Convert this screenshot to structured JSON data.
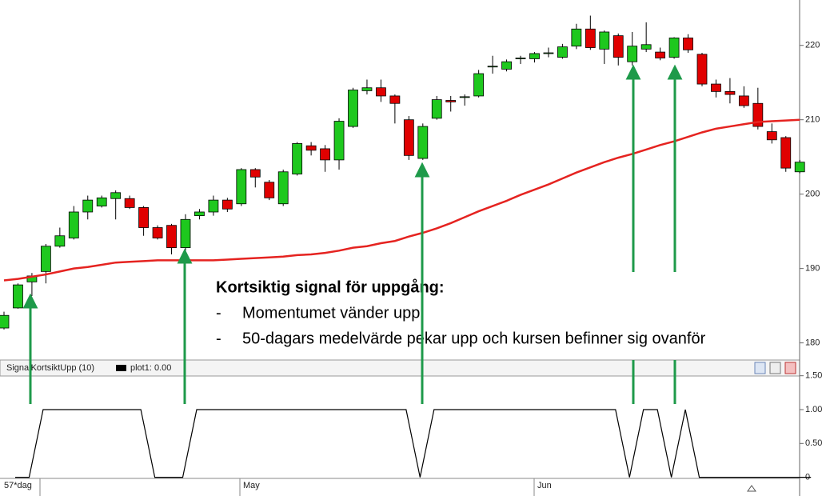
{
  "chart_data": [
    {
      "type": "candlestick",
      "open": [
        182.0,
        184.7,
        188.2,
        189.6,
        193.0,
        194.1,
        197.6,
        198.4,
        199.4,
        199.4,
        198.2,
        195.5,
        195.8,
        192.8,
        197.1,
        197.6,
        199.2,
        198.7,
        203.3,
        201.6,
        198.7,
        202.7,
        206.5,
        206.1,
        204.6,
        209.1,
        213.9,
        214.3,
        213.2,
        210.0,
        204.8,
        210.2,
        212.6,
        213.0,
        213.2,
        217.1,
        216.8,
        218.2,
        218.2,
        218.9,
        218.4,
        219.9,
        222.2,
        219.5,
        221.3,
        217.8,
        219.5,
        219.1,
        218.4,
        221.0,
        218.8,
        214.8,
        213.8,
        213.2,
        212.2,
        208.4,
        207.6,
        203.0
      ],
      "high": [
        184.2,
        188.0,
        189.4,
        193.3,
        195.5,
        198.4,
        199.8,
        199.8,
        200.5,
        199.8,
        198.4,
        195.8,
        196.0,
        197.3,
        198.0,
        199.8,
        199.5,
        203.5,
        203.5,
        201.9,
        203.3,
        207.0,
        207.0,
        206.6,
        210.2,
        214.3,
        215.4,
        215.4,
        213.4,
        210.5,
        209.5,
        213.2,
        213.2,
        213.4,
        216.7,
        218.6,
        218.1,
        218.6,
        219.1,
        219.7,
        220.2,
        222.9,
        224.0,
        222.0,
        221.6,
        221.8,
        223.1,
        219.7,
        221.1,
        221.5,
        219.0,
        215.4,
        215.6,
        214.5,
        214.3,
        209.5,
        207.8,
        204.6
      ],
      "low": [
        181.8,
        184.6,
        186.3,
        188.0,
        192.8,
        193.9,
        196.6,
        198.2,
        196.6,
        198.0,
        194.4,
        193.9,
        191.9,
        191.9,
        196.6,
        197.1,
        197.6,
        198.4,
        200.9,
        199.2,
        198.4,
        202.5,
        205.2,
        203.0,
        203.3,
        208.9,
        213.4,
        212.4,
        209.5,
        204.6,
        204.6,
        210.0,
        211.1,
        211.9,
        213.0,
        216.2,
        216.5,
        217.5,
        217.7,
        218.4,
        218.2,
        219.5,
        219.4,
        217.5,
        217.3,
        217.3,
        219.1,
        218.0,
        218.2,
        219.0,
        214.5,
        213.0,
        212.2,
        211.6,
        208.7,
        206.8,
        203.0,
        202.8
      ],
      "close": [
        183.7,
        187.8,
        189.0,
        193.0,
        194.4,
        197.6,
        199.2,
        199.5,
        200.2,
        198.2,
        195.5,
        194.1,
        192.8,
        196.6,
        197.6,
        199.2,
        198.0,
        203.3,
        202.3,
        199.5,
        203.0,
        206.8,
        205.9,
        204.6,
        209.8,
        214.0,
        214.3,
        213.2,
        212.2,
        205.2,
        209.1,
        212.7,
        212.4,
        213.1,
        216.2,
        217.2,
        217.8,
        218.3,
        218.9,
        219.0,
        219.8,
        222.2,
        219.7,
        221.8,
        218.4,
        219.9,
        220.1,
        218.3,
        221.0,
        219.4,
        214.8,
        213.8,
        213.4,
        211.9,
        209.1,
        207.3,
        203.5,
        204.3
      ],
      "up_color": "#1ec81e",
      "down_color": "#e00000",
      "ma": {
        "color": "#e52320",
        "values": [
          188.4,
          188.6,
          188.9,
          189.2,
          189.6,
          190.0,
          190.2,
          190.5,
          190.8,
          190.9,
          191.0,
          191.1,
          191.1,
          191.1,
          191.1,
          191.1,
          191.2,
          191.3,
          191.4,
          191.5,
          191.6,
          191.8,
          191.9,
          192.1,
          192.4,
          192.8,
          193.0,
          193.4,
          193.7,
          194.3,
          194.8,
          195.4,
          196.1,
          196.9,
          197.7,
          198.4,
          199.1,
          199.9,
          200.6,
          201.3,
          202.1,
          202.9,
          203.6,
          204.3,
          204.9,
          205.4,
          206.0,
          206.6,
          207.1,
          207.7,
          208.3,
          208.8,
          209.1,
          209.4,
          209.7,
          209.8,
          209.9,
          210.0
        ]
      },
      "ylim": [
        177.7,
        226.1
      ],
      "yticks": [
        180,
        190,
        200,
        210,
        220
      ]
    },
    {
      "type": "line",
      "title": "SignalKortsiktUpp (10)",
      "legend": "plot1: 0.00",
      "series": [
        {
          "color": "#000000",
          "values": [
            0,
            0,
            1,
            1,
            1,
            1,
            1,
            1,
            1,
            1,
            0,
            0,
            0,
            1,
            1,
            1,
            1,
            1,
            1,
            1,
            1,
            1,
            1,
            1,
            1,
            1,
            1,
            1,
            1,
            0,
            1,
            1,
            1,
            1,
            1,
            1,
            1,
            1,
            1,
            1,
            1,
            1,
            1,
            1,
            0,
            1,
            1,
            0,
            1,
            0,
            0,
            0,
            0,
            0,
            0,
            0,
            0,
            0
          ]
        }
      ],
      "ylim": [
        -0.04,
        1.52
      ],
      "yticks": [
        {
          "value": 0,
          "label": "0"
        },
        {
          "value": 0.5,
          "label": "0.50"
        },
        {
          "value": 1,
          "label": "1.00"
        },
        {
          "value": 1.5,
          "label": "1.50"
        }
      ],
      "x_labels": [
        "57*dag",
        "May",
        "Jun"
      ]
    }
  ],
  "annotation": {
    "title": "Kortsiktig signal för uppgång:",
    "items": [
      "Momentumet vänder upp",
      "50-dagars medelvärde pekar upp och kursen befinner sig ovanför"
    ]
  }
}
